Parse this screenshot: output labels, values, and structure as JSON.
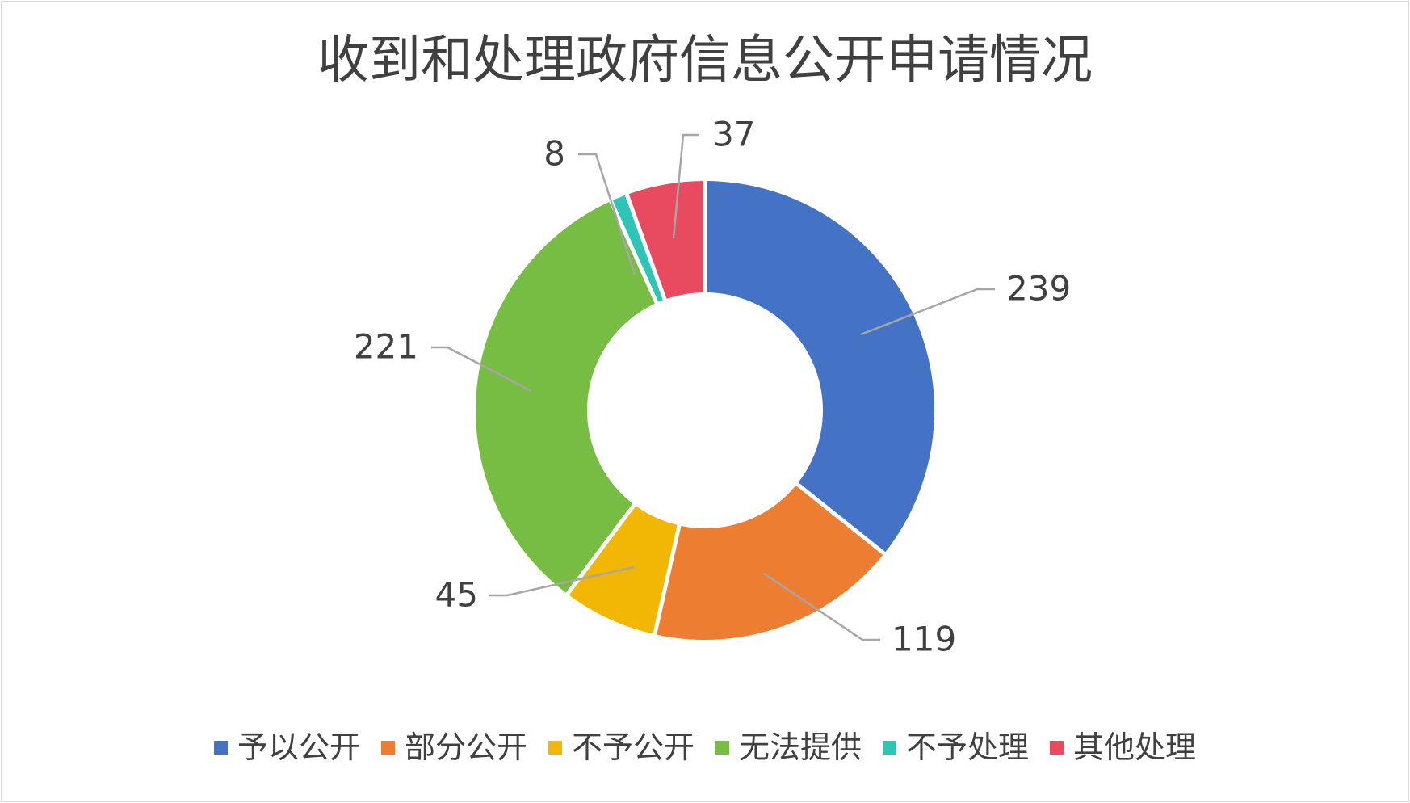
{
  "chart_data": {
    "type": "pie",
    "subtype": "donut",
    "title": "收到和处理政府信息公开申请情况",
    "categories": [
      "予以公开",
      "部分公开",
      "不予公开",
      "无法提供",
      "不予处理",
      "其他处理"
    ],
    "values": [
      239,
      119,
      45,
      221,
      8,
      37
    ],
    "value_labels": [
      "239",
      "119",
      "45",
      "221",
      "8",
      "37"
    ],
    "colors": [
      "#4472C4",
      "#ED7D31",
      "#F2B705",
      "#77BD43",
      "#2EC4B6",
      "#E84A5F"
    ],
    "legend_position": "bottom",
    "start_angle_deg": 0,
    "direction": "clockwise"
  }
}
